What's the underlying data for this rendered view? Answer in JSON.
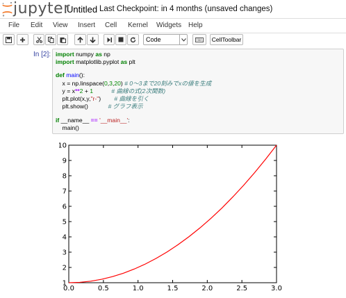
{
  "header": {
    "logo_text": "jupyter",
    "notebook_title": "Untitled",
    "checkpoint_status": "Last Checkpoint: in 4 months (unsaved changes)"
  },
  "menu": {
    "items": [
      "File",
      "Edit",
      "View",
      "Insert",
      "Cell",
      "Kernel",
      "Widgets",
      "Help"
    ]
  },
  "toolbar": {
    "cell_type": "Code",
    "celltoolbar_label": "CellToolbar",
    "buttons": [
      "save-icon",
      "plus-icon",
      "cut-icon",
      "copy-icon",
      "paste-icon",
      "move-up-icon",
      "move-down-icon",
      "run-icon",
      "stop-icon",
      "restart-icon",
      "keyboard-icon"
    ]
  },
  "cell": {
    "prompt": "In [2]:",
    "code": {
      "l1_kw": "import",
      "l1_mod": " numpy ",
      "l1_as": "as",
      "l1_alias": " np",
      "l2_kw": "import",
      "l2_mod": " matplotlib.pyplot ",
      "l2_as": "as",
      "l2_alias": " plt",
      "l4_def": "def",
      "l4_name": " main",
      "l4_rest": "():",
      "l5_a": "    x = np.linspace(",
      "l5_n": "0",
      "l5_b": ",",
      "l5_n2": "3",
      "l5_c": ",",
      "l5_n3": "20",
      "l5_d": ") ",
      "l5_cm": "# 0〜3まで20刻みでxの値を生成",
      "l6_a": "    y = x",
      "l6_op": "**",
      "l6_n": "2",
      "l6_b": " + ",
      "l6_n2": "1",
      "l6_cm": "           # 曲線の式(2次関数)",
      "l7_a": "    plt.plot(x,y,",
      "l7_str": "\"r-\"",
      "l7_b": ")",
      "l7_cm": "        # 曲線を引く",
      "l8_a": "    plt.show()",
      "l8_cm": "            # グラフ表示",
      "l10_if": "if",
      "l10_a": " __name__ ",
      "l10_op": "==",
      "l10_str": " '__main__'",
      "l10_b": ":",
      "l11_a": "    main()"
    }
  },
  "colors": {
    "prompt": "#303F9F",
    "curve": "#FF0000",
    "logo_orange": "#F37726"
  },
  "chart_data": {
    "type": "line",
    "x": [
      0.0,
      0.158,
      0.316,
      0.474,
      0.632,
      0.789,
      0.947,
      1.105,
      1.263,
      1.421,
      1.579,
      1.737,
      1.895,
      2.053,
      2.211,
      2.368,
      2.526,
      2.684,
      2.842,
      3.0
    ],
    "series": [
      {
        "values": [
          1.0,
          1.025,
          1.1,
          1.224,
          1.399,
          1.623,
          1.898,
          2.222,
          2.596,
          3.019,
          3.493,
          4.017,
          4.59,
          5.213,
          5.886,
          6.609,
          7.382,
          8.205,
          9.078,
          10.0
        ],
        "color": "#FF0000"
      }
    ],
    "xlim": [
      0.0,
      3.0
    ],
    "ylim": [
      1,
      10
    ],
    "xticks": [
      "0.0",
      "0.5",
      "1.0",
      "1.5",
      "2.0",
      "2.5",
      "3.0"
    ],
    "yticks": [
      "1",
      "2",
      "3",
      "4",
      "5",
      "6",
      "7",
      "8",
      "9",
      "10"
    ],
    "grid": false,
    "title": "",
    "xlabel": "",
    "ylabel": ""
  }
}
